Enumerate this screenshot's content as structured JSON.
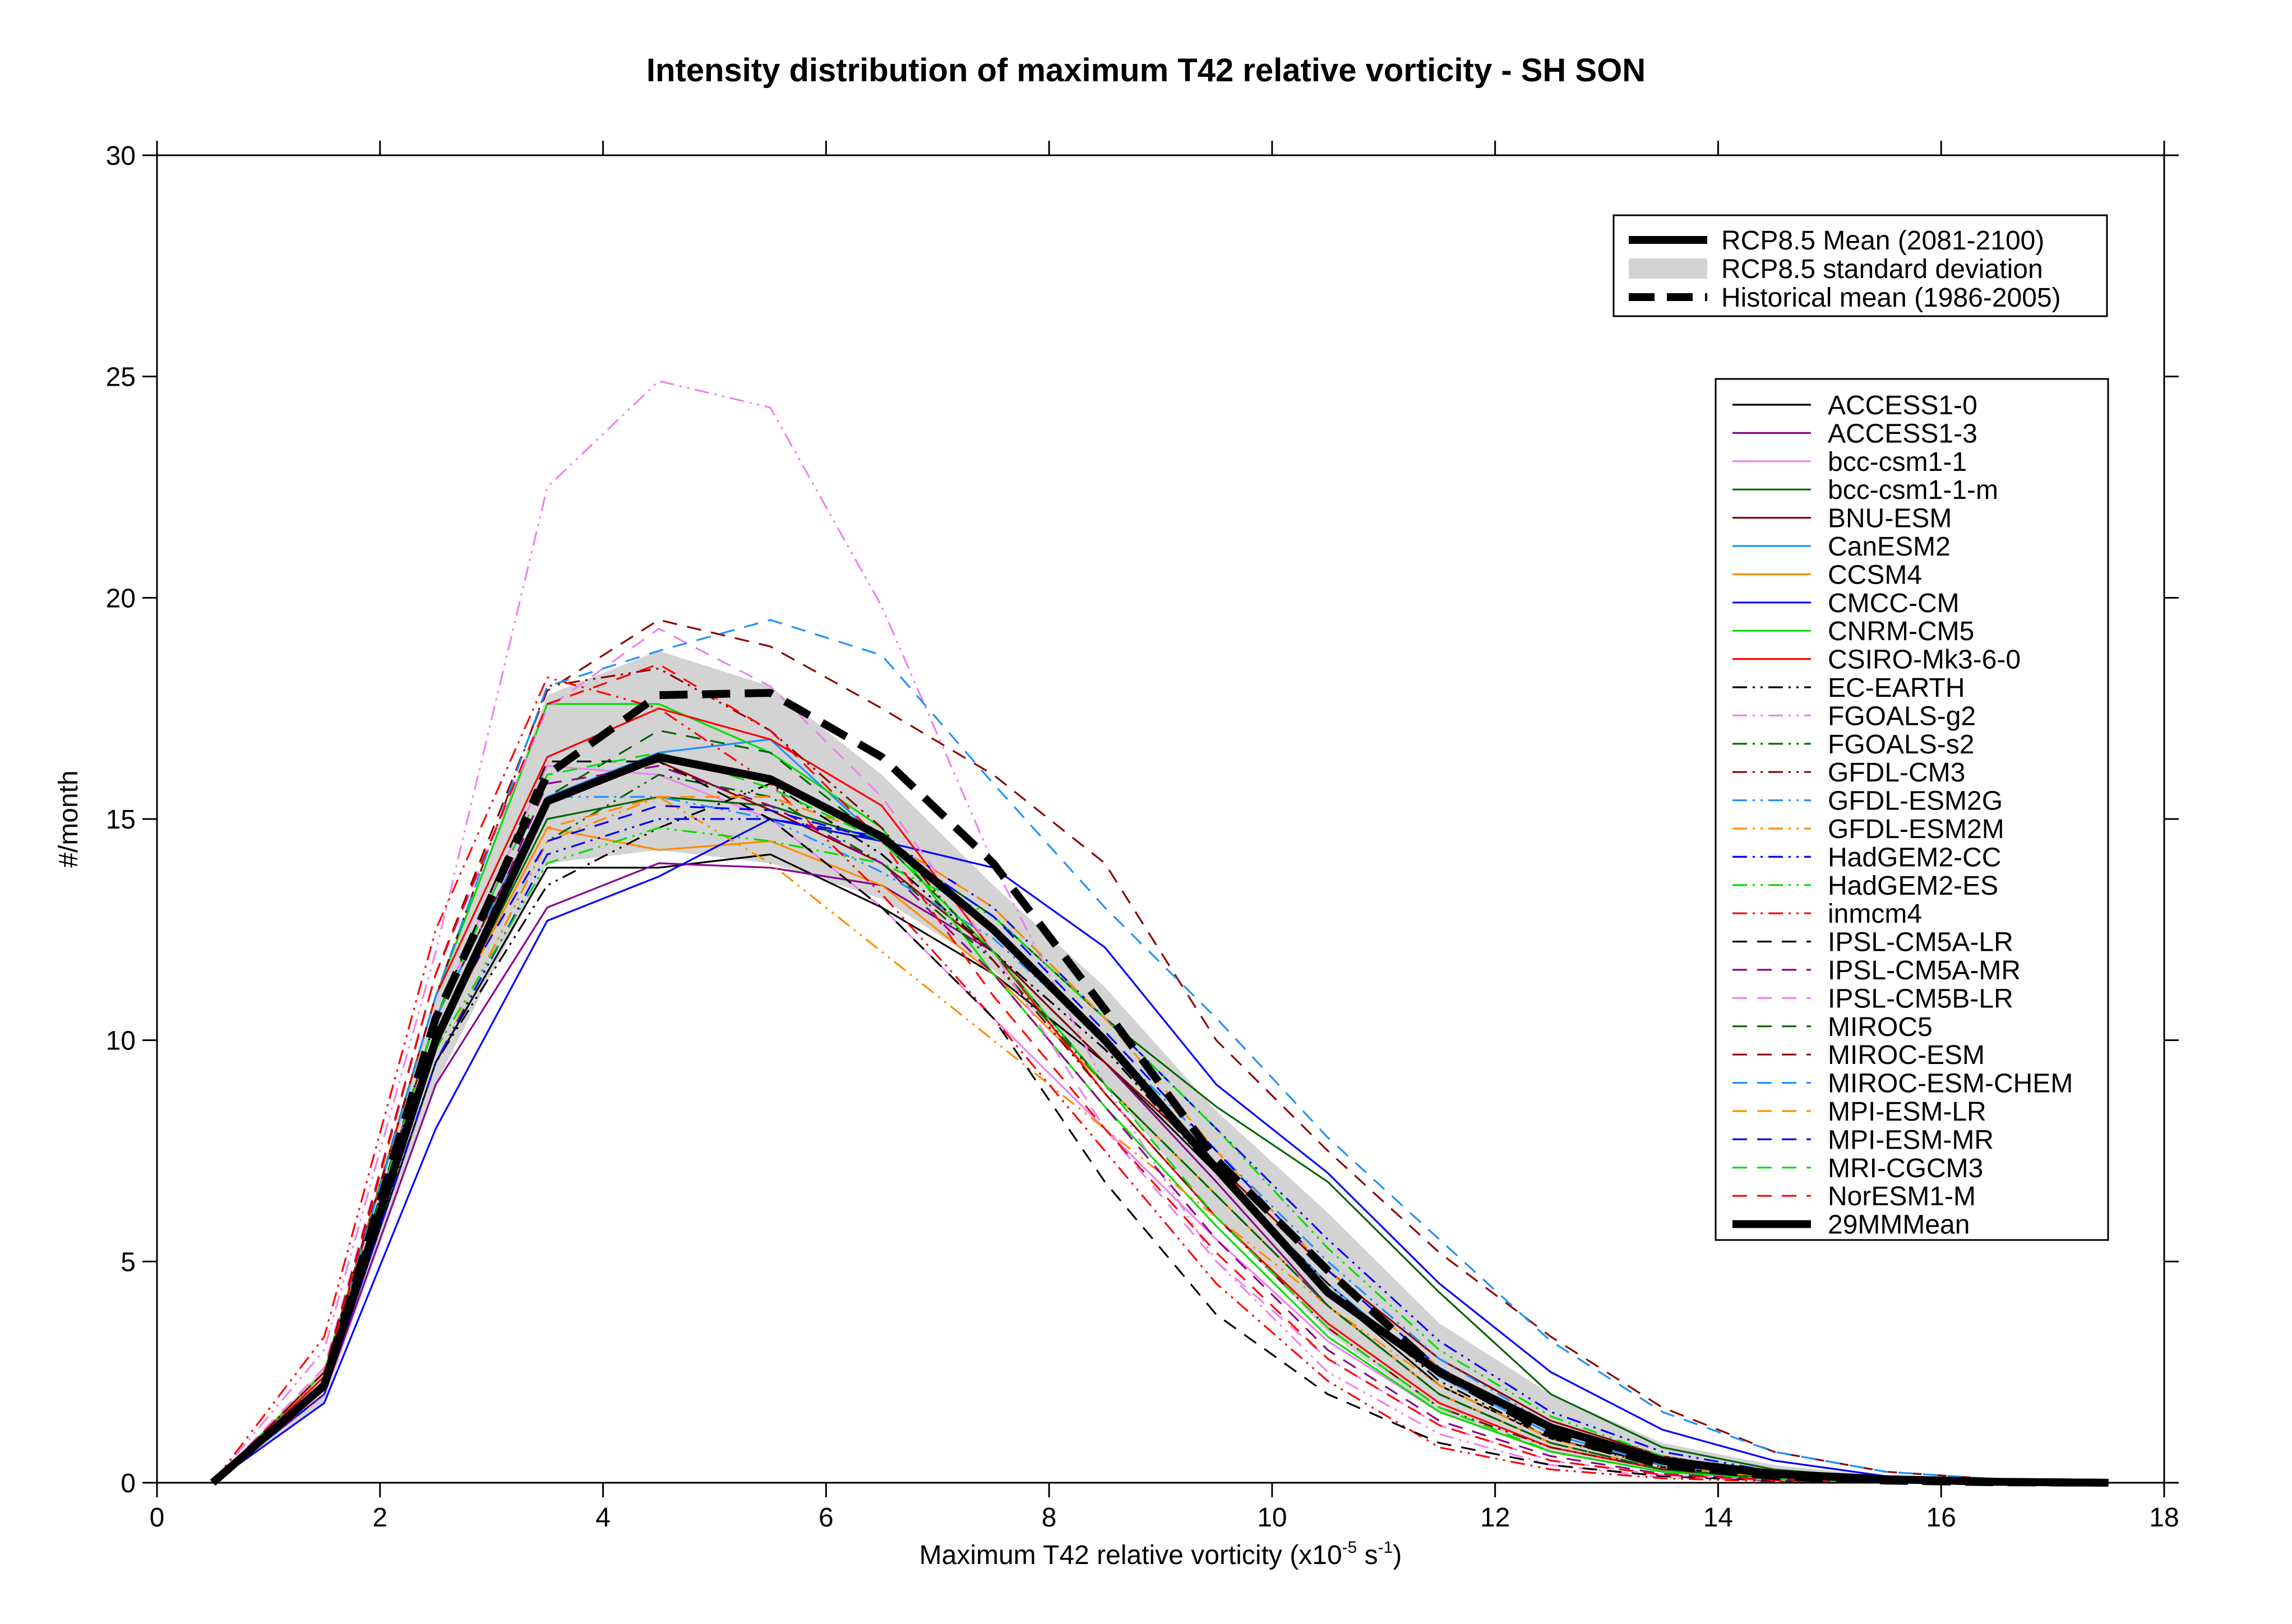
{
  "chart_data": {
    "type": "line",
    "title": "Intensity distribution of maximum T42 relative vorticity - SH SON",
    "xlabel": "Maximum T42 relative vorticity (x10",
    "xlabel_exp": "-5",
    "xlabel_mid": " s",
    "xlabel_exp2": "-1",
    "xlabel_end": ")",
    "ylabel": "#/month",
    "xlim": [
      0,
      18
    ],
    "ylim": [
      0,
      30
    ],
    "xticks": [
      "0",
      "2",
      "4",
      "6",
      "8",
      "10",
      "12",
      "14",
      "16",
      "18"
    ],
    "yticks": [
      "0",
      "5",
      "10",
      "15",
      "20",
      "25",
      "30"
    ],
    "x": [
      0.5,
      1.5,
      2.5,
      3.5,
      4.5,
      5.5,
      6.5,
      7.5,
      8.5,
      9.5,
      10.5,
      11.5,
      12.5,
      13.5,
      14.5,
      15.5,
      16.5,
      17.5
    ],
    "legend_top": [
      {
        "label": "RCP8.5 Mean (2081-2100)",
        "style": "thick-solid"
      },
      {
        "label": "RCP8.5 standard deviation",
        "style": "band"
      },
      {
        "label": "Historical mean (1986-2005)",
        "style": "thick-dashed"
      }
    ],
    "band": {
      "upper": [
        0,
        2.6,
        11.0,
        17.8,
        18.8,
        18.0,
        16.0,
        13.5,
        11.2,
        8.4,
        6.1,
        3.6,
        2.0,
        0.9,
        0.4,
        0.15,
        0.05,
        0.01
      ],
      "lower": [
        0,
        1.8,
        9.0,
        14.0,
        14.3,
        14.0,
        13.2,
        11.6,
        9.0,
        6.0,
        3.4,
        1.6,
        0.7,
        0.25,
        0.08,
        0.02,
        0.0,
        0.0
      ]
    },
    "rcp85_mean": [
      0,
      2.2,
      10.0,
      15.4,
      16.4,
      15.9,
      14.6,
      12.5,
      10.0,
      7.1,
      4.3,
      2.5,
      1.25,
      0.5,
      0.2,
      0.08,
      0.02,
      0.0
    ],
    "historical_mean": [
      0,
      2.2,
      10.5,
      16.0,
      17.8,
      17.85,
      16.4,
      14.0,
      10.7,
      7.3,
      4.8,
      2.5,
      1.1,
      0.4,
      0.15,
      0.05,
      0.01,
      0.0
    ],
    "series": [
      {
        "name": "ACCESS1-0",
        "color": "#000000",
        "dash": "solid",
        "values": [
          0,
          2.0,
          9.5,
          13.9,
          13.9,
          14.2,
          13.0,
          11.5,
          9.5,
          7.0,
          4.3,
          2.2,
          1.0,
          0.4,
          0.15,
          0.05,
          0.01,
          0.0
        ]
      },
      {
        "name": "ACCESS1-3",
        "color": "#8b008b",
        "dash": "solid",
        "values": [
          0,
          2.0,
          9.0,
          13.0,
          14.0,
          13.9,
          13.5,
          12.0,
          9.5,
          6.8,
          4.0,
          2.0,
          0.9,
          0.3,
          0.1,
          0.03,
          0.01,
          0.0
        ]
      },
      {
        "name": "bcc-csm1-1",
        "color": "#ee82ee",
        "dash": "solid",
        "values": [
          0,
          2.3,
          10.5,
          16.2,
          16.0,
          15.0,
          13.0,
          10.5,
          8.0,
          5.5,
          3.2,
          1.6,
          0.7,
          0.25,
          0.08,
          0.02,
          0.0,
          0.0
        ]
      },
      {
        "name": "bcc-csm1-1-m",
        "color": "#006400",
        "dash": "solid",
        "values": [
          0,
          2.1,
          10.0,
          15.0,
          15.5,
          15.3,
          14.5,
          12.8,
          10.5,
          8.5,
          6.8,
          4.3,
          2.0,
          0.8,
          0.3,
          0.1,
          0.03,
          0.0
        ]
      },
      {
        "name": "BNU-ESM",
        "color": "#8b0000",
        "dash": "solid",
        "values": [
          0,
          2.2,
          10.5,
          15.5,
          16.3,
          15.2,
          14.0,
          12.0,
          9.5,
          7.2,
          4.8,
          2.8,
          1.4,
          0.6,
          0.2,
          0.07,
          0.02,
          0.0
        ]
      },
      {
        "name": "CanESM2",
        "color": "#1e90ff",
        "dash": "solid",
        "values": [
          0,
          2.1,
          10.0,
          15.5,
          16.5,
          16.8,
          14.5,
          12.5,
          10.0,
          7.0,
          4.5,
          2.4,
          1.1,
          0.4,
          0.15,
          0.05,
          0.01,
          0.0
        ]
      },
      {
        "name": "CCSM4",
        "color": "#ff8c00",
        "dash": "solid",
        "values": [
          0,
          2.2,
          10.0,
          14.8,
          14.3,
          14.5,
          13.5,
          11.5,
          9.0,
          6.5,
          4.0,
          2.0,
          0.9,
          0.3,
          0.1,
          0.03,
          0.01,
          0.0
        ]
      },
      {
        "name": "CMCC-CM",
        "color": "#0000ff",
        "dash": "solid",
        "values": [
          0,
          1.8,
          8.0,
          12.7,
          13.7,
          15.0,
          14.5,
          13.9,
          12.1,
          9.0,
          7.0,
          4.5,
          2.5,
          1.2,
          0.5,
          0.15,
          0.05,
          0.01
        ]
      },
      {
        "name": "CNRM-CM5",
        "color": "#00dd00",
        "dash": "solid",
        "values": [
          0,
          2.5,
          11.0,
          17.6,
          17.6,
          16.5,
          14.8,
          11.5,
          8.5,
          5.8,
          3.3,
          1.6,
          0.7,
          0.25,
          0.08,
          0.02,
          0.0,
          0.0
        ]
      },
      {
        "name": "CSIRO-Mk3-6-0",
        "color": "#ff0000",
        "dash": "solid",
        "values": [
          0,
          2.4,
          11.0,
          16.4,
          17.5,
          16.8,
          15.3,
          12.0,
          8.8,
          6.0,
          3.6,
          1.8,
          0.8,
          0.3,
          0.1,
          0.03,
          0.01,
          0.0
        ]
      },
      {
        "name": "EC-EARTH",
        "color": "#000000",
        "dash": "dashdotdot",
        "values": [
          0,
          2.1,
          9.5,
          13.5,
          14.8,
          15.8,
          14.2,
          12.0,
          9.8,
          7.0,
          4.5,
          2.3,
          1.0,
          0.35,
          0.12,
          0.04,
          0.01,
          0.0
        ]
      },
      {
        "name": "FGOALS-g2",
        "color": "#ee82ee",
        "dash": "dashdotdot",
        "values": [
          0,
          3.0,
          12.0,
          22.5,
          24.9,
          24.3,
          19.8,
          14.0,
          9.0,
          5.0,
          2.5,
          1.1,
          0.4,
          0.12,
          0.04,
          0.01,
          0.0,
          0.0
        ]
      },
      {
        "name": "FGOALS-s2",
        "color": "#006400",
        "dash": "dashdotdot",
        "values": [
          0,
          2.0,
          9.5,
          14.5,
          16.0,
          15.5,
          14.0,
          11.8,
          9.0,
          6.5,
          4.0,
          2.0,
          0.9,
          0.3,
          0.1,
          0.03,
          0.01,
          0.0
        ]
      },
      {
        "name": "GFDL-CM3",
        "color": "#8b0000",
        "dash": "dashdotdot",
        "values": [
          0,
          2.5,
          11.0,
          18.0,
          18.4,
          17.0,
          14.8,
          11.8,
          8.8,
          6.0,
          3.5,
          1.7,
          0.8,
          0.3,
          0.1,
          0.03,
          0.01,
          0.0
        ]
      },
      {
        "name": "GFDL-ESM2G",
        "color": "#1e90ff",
        "dash": "dashdotdot",
        "values": [
          0,
          2.3,
          10.5,
          15.5,
          15.5,
          15.0,
          13.8,
          12.3,
          10.0,
          7.5,
          5.0,
          2.8,
          1.3,
          0.5,
          0.17,
          0.05,
          0.01,
          0.0
        ]
      },
      {
        "name": "GFDL-ESM2M",
        "color": "#ff8c00",
        "dash": "dashdotdot",
        "values": [
          0,
          2.0,
          9.5,
          14.5,
          15.5,
          14.0,
          12.0,
          10.0,
          8.0,
          6.0,
          4.0,
          2.2,
          1.0,
          0.35,
          0.12,
          0.04,
          0.01,
          0.0
        ]
      },
      {
        "name": "HadGEM2-CC",
        "color": "#0000ff",
        "dash": "dashdotdot",
        "values": [
          0,
          2.0,
          9.5,
          14.2,
          15.0,
          15.0,
          14.6,
          13.0,
          10.5,
          8.0,
          5.5,
          3.2,
          1.6,
          0.7,
          0.25,
          0.08,
          0.02,
          0.0
        ]
      },
      {
        "name": "HadGEM2-ES",
        "color": "#00dd00",
        "dash": "dashdotdot",
        "values": [
          0,
          2.1,
          9.8,
          14.0,
          14.8,
          14.5,
          14.0,
          12.8,
          10.5,
          8.0,
          5.3,
          3.0,
          1.5,
          0.6,
          0.2,
          0.07,
          0.02,
          0.0
        ]
      },
      {
        "name": "inmcm4",
        "color": "#ff0000",
        "dash": "dashdotdot",
        "values": [
          0,
          3.3,
          12.5,
          18.2,
          17.5,
          15.8,
          13.3,
          10.5,
          7.5,
          4.5,
          2.3,
          0.8,
          0.3,
          0.1,
          0.03,
          0.01,
          0.0,
          0.0
        ]
      },
      {
        "name": "IPSL-CM5A-LR",
        "color": "#000000",
        "dash": "dashed",
        "values": [
          0,
          2.4,
          10.5,
          16.3,
          16.3,
          15.0,
          13.0,
          10.5,
          6.8,
          3.8,
          2.0,
          0.9,
          0.4,
          0.15,
          0.05,
          0.01,
          0.0,
          0.0
        ]
      },
      {
        "name": "IPSL-CM5A-MR",
        "color": "#8b008b",
        "dash": "dashed",
        "values": [
          0,
          2.3,
          10.0,
          15.8,
          16.2,
          15.3,
          14.0,
          11.5,
          8.5,
          5.5,
          3.0,
          1.4,
          0.6,
          0.2,
          0.07,
          0.02,
          0.0,
          0.0
        ]
      },
      {
        "name": "IPSL-CM5B-LR",
        "color": "#ee82ee",
        "dash": "dashed",
        "values": [
          0,
          2.6,
          11.5,
          17.5,
          19.3,
          18.0,
          15.5,
          12.0,
          8.0,
          5.0,
          2.8,
          1.3,
          0.5,
          0.18,
          0.06,
          0.02,
          0.0,
          0.0
        ]
      },
      {
        "name": "MIROC5",
        "color": "#006400",
        "dash": "dashed",
        "values": [
          0,
          2.1,
          10.0,
          15.5,
          17.0,
          16.5,
          14.5,
          12.0,
          9.0,
          6.5,
          4.0,
          2.0,
          0.9,
          0.3,
          0.1,
          0.03,
          0.01,
          0.0
        ]
      },
      {
        "name": "MIROC-ESM",
        "color": "#8b0000",
        "dash": "dashed",
        "values": [
          0,
          2.5,
          11.5,
          17.9,
          19.5,
          18.9,
          17.5,
          16.0,
          14.0,
          10.0,
          7.5,
          5.2,
          3.3,
          1.7,
          0.7,
          0.25,
          0.08,
          0.02
        ]
      },
      {
        "name": "MIROC-ESM-CHEM",
        "color": "#1e90ff",
        "dash": "dashed",
        "values": [
          0,
          2.4,
          11.0,
          18.0,
          18.8,
          19.5,
          18.7,
          15.8,
          13.0,
          10.5,
          7.8,
          5.5,
          3.2,
          1.6,
          0.7,
          0.25,
          0.08,
          0.02
        ]
      },
      {
        "name": "MPI-ESM-LR",
        "color": "#ff8c00",
        "dash": "dashed",
        "values": [
          0,
          2.2,
          10.0,
          14.8,
          15.5,
          15.5,
          14.6,
          13.0,
          10.5,
          7.5,
          4.8,
          2.6,
          1.2,
          0.45,
          0.15,
          0.05,
          0.01,
          0.0
        ]
      },
      {
        "name": "MPI-ESM-MR",
        "color": "#0000ff",
        "dash": "dashed",
        "values": [
          0,
          2.2,
          10.2,
          14.5,
          15.3,
          15.2,
          14.5,
          12.8,
          10.2,
          7.5,
          4.8,
          2.6,
          1.2,
          0.45,
          0.15,
          0.05,
          0.01,
          0.0
        ]
      },
      {
        "name": "MRI-CGCM3",
        "color": "#00dd00",
        "dash": "dashed",
        "values": [
          0,
          2.3,
          10.5,
          16.0,
          16.5,
          15.7,
          14.5,
          12.0,
          9.0,
          6.0,
          3.5,
          1.7,
          0.7,
          0.25,
          0.08,
          0.02,
          0.0,
          0.0
        ]
      },
      {
        "name": "NorESM1-M",
        "color": "#ff0000",
        "dash": "dashed",
        "values": [
          0,
          2.4,
          11.5,
          17.6,
          18.5,
          17.0,
          14.5,
          11.0,
          8.0,
          5.2,
          2.8,
          1.3,
          0.5,
          0.18,
          0.06,
          0.02,
          0.0,
          0.0
        ]
      },
      {
        "name": "29MMMean",
        "color": "#000000",
        "dash": "thick-solid",
        "values": [
          0,
          2.2,
          10.0,
          15.4,
          16.4,
          15.9,
          14.6,
          12.5,
          10.0,
          7.1,
          4.3,
          2.5,
          1.25,
          0.5,
          0.2,
          0.08,
          0.02,
          0.0
        ]
      }
    ]
  }
}
